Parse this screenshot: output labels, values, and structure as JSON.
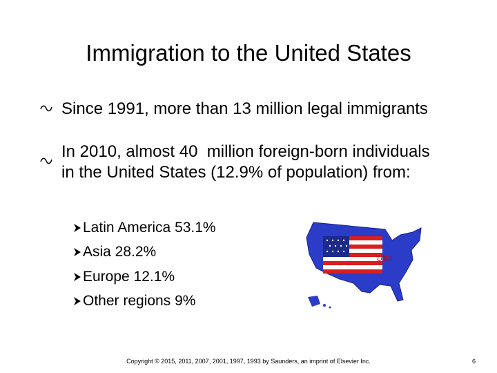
{
  "slide": {
    "title": "Immigration to the United States",
    "bullets": [
      "Since 1991, more than 13 million legal immigrants",
      "In 2010, almost 40  million foreign-born individuals in the United States (12.9% of population) from:"
    ],
    "sub_bullets": [
      "Latin America 53.1%",
      "Asia 28.2%",
      "Europe 12.1%",
      "Other regions 9%"
    ],
    "map_label": "USA",
    "footer": "Copyright © 2015, 2011, 2007, 2001, 1997, 1993 by Saunders, an imprint of Elsevier Inc.",
    "page_number": "6"
  }
}
